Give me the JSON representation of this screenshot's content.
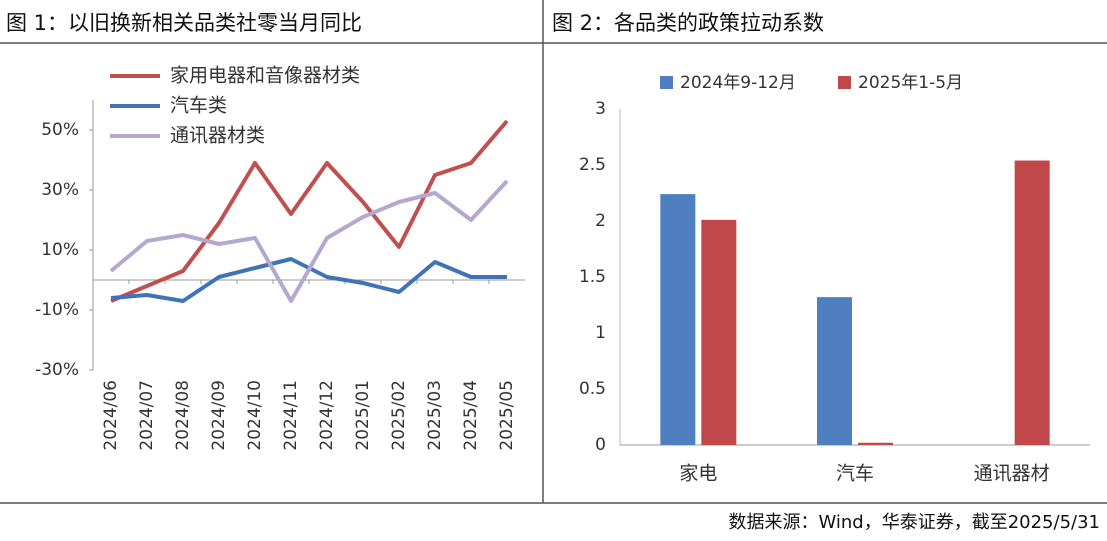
{
  "chart_data": [
    {
      "type": "line",
      "title": "图 1：以旧换新相关品类社零当月同比",
      "categories": [
        "2024/06",
        "2024/07",
        "2024/08",
        "2024/09",
        "2024/10",
        "2024/11",
        "2024/12",
        "2025/01",
        "2025/02",
        "2025/03",
        "2025/04",
        "2025/05"
      ],
      "series": [
        {
          "name": "家用电器和音像器材类",
          "color": "#c0504d",
          "values": [
            -7,
            -2,
            3,
            19,
            39,
            22,
            39,
            26,
            11,
            35,
            39,
            53
          ]
        },
        {
          "name": "汽车类",
          "color": "#3f73b8",
          "values": [
            -6,
            -5,
            -7,
            1,
            4,
            7,
            1,
            -1,
            -4,
            6,
            1,
            1
          ]
        },
        {
          "name": "通讯器材类",
          "color": "#b4a7d0",
          "values": [
            3,
            13,
            15,
            12,
            14,
            -7,
            14,
            21,
            26,
            29,
            20,
            33
          ]
        }
      ],
      "ylim": [
        -30,
        60
      ],
      "yticks": [
        {
          "value": -30,
          "label": "-30%"
        },
        {
          "value": -10,
          "label": "-10%"
        },
        {
          "value": 10,
          "label": "10%"
        },
        {
          "value": 30,
          "label": "30%"
        },
        {
          "value": 50,
          "label": "50%"
        }
      ],
      "grid": false
    },
    {
      "type": "bar",
      "title": "图 2：各品类的政策拉动系数",
      "categories": [
        "家电",
        "汽车",
        "通讯器材"
      ],
      "series": [
        {
          "name": "2024年9-12月",
          "color": "#4f7fc0",
          "values": [
            2.24,
            1.32,
            null
          ]
        },
        {
          "name": "2025年1-5月",
          "color": "#c0484a",
          "values": [
            2.01,
            0.02,
            2.54
          ]
        }
      ],
      "ylim": [
        0,
        3
      ],
      "yticks": [
        0,
        0.5,
        1,
        1.5,
        2,
        2.5,
        3
      ],
      "grid": false
    }
  ],
  "source": "数据来源：Wind，华泰证券，截至2025/5/31"
}
